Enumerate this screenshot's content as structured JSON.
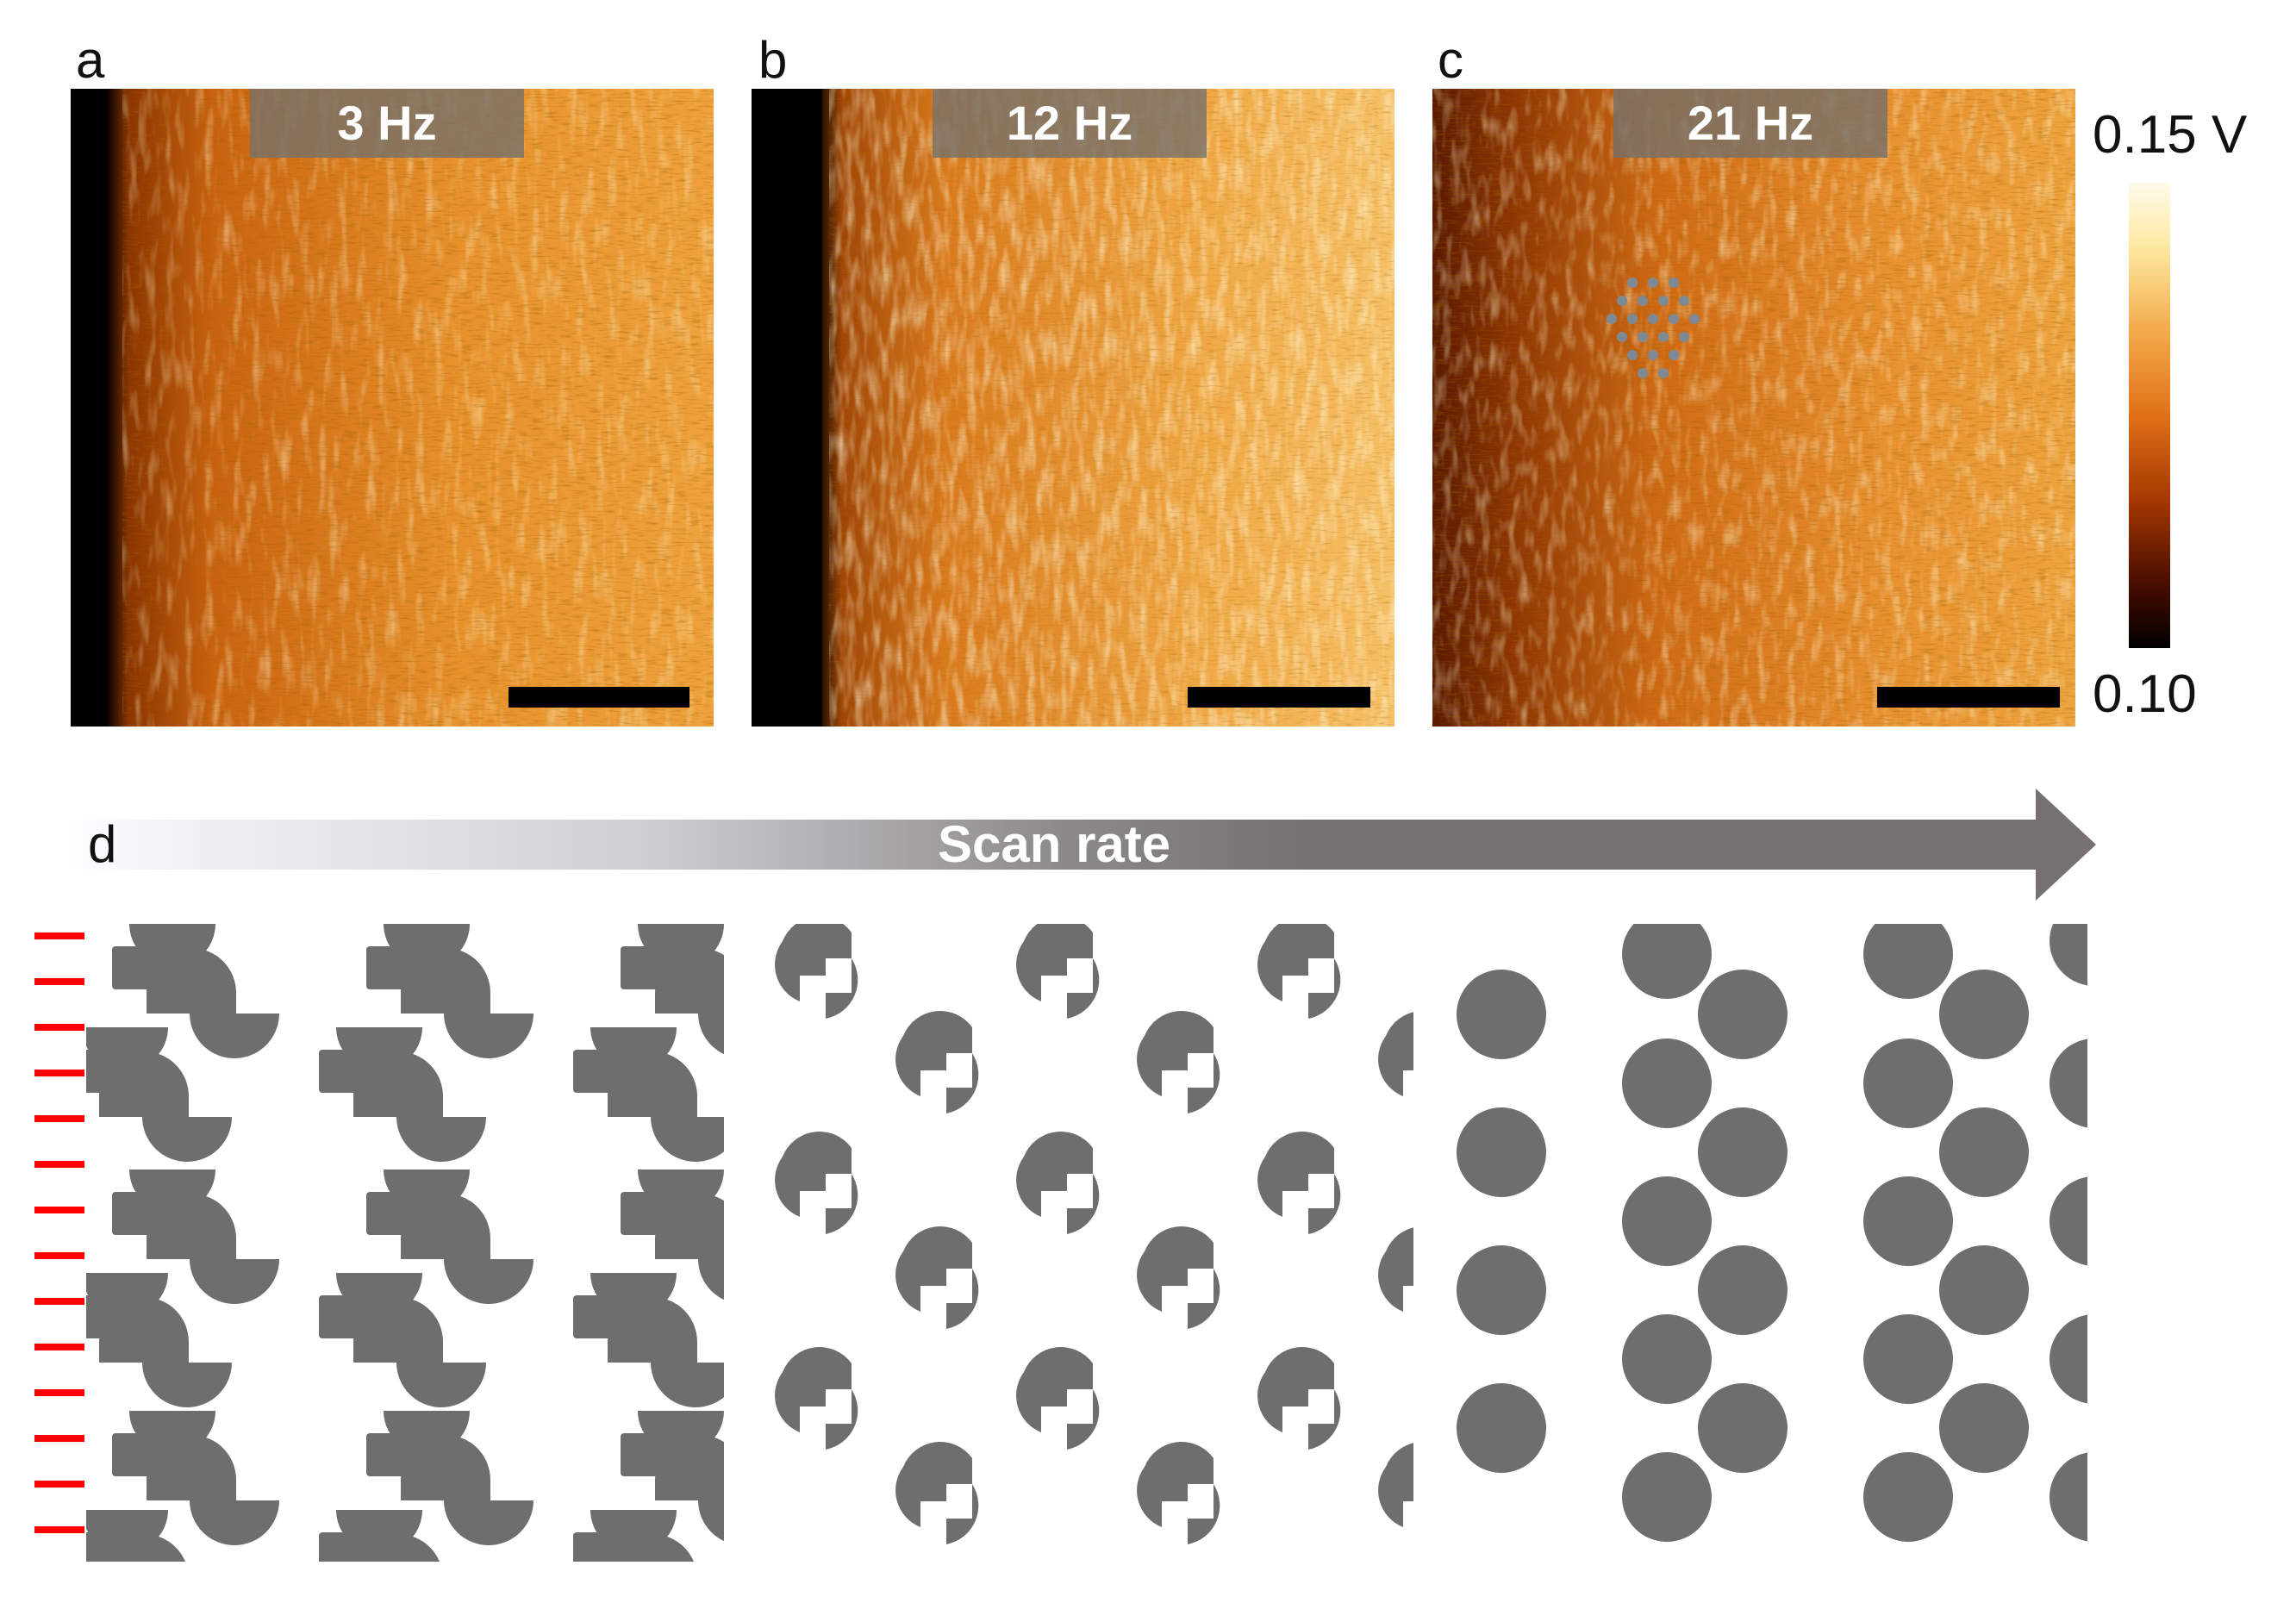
{
  "panels": [
    {
      "label": "a",
      "freq": "3 Hz"
    },
    {
      "label": "b",
      "freq": "12 Hz"
    },
    {
      "label": "c",
      "freq": "21 Hz"
    }
  ],
  "colorbar": {
    "max_label": "0.15 V",
    "min_label": "0.10",
    "stops": [
      "#000000",
      "#4a0d00",
      "#a63800",
      "#e07018",
      "#f3aa4a",
      "#fde8a0",
      "#fffbea"
    ]
  },
  "arrow": {
    "panel_label": "d",
    "text": "Scan rate",
    "color": "#767070"
  },
  "schematic": {
    "fill_color": "#6e6e6e",
    "scan_line_color": "#ff0000",
    "scan_line_count": 14
  }
}
